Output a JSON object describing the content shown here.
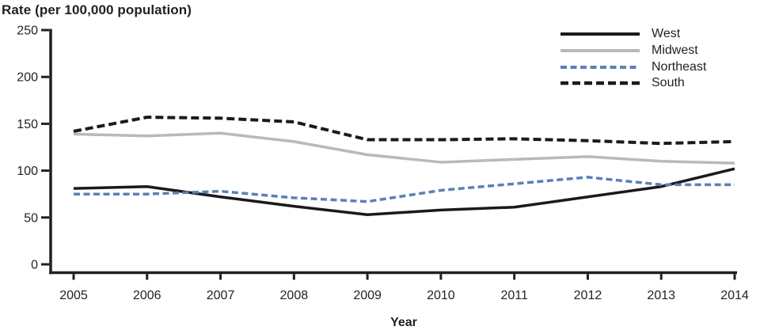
{
  "chart_data": {
    "type": "line",
    "y_axis_title": "Rate (per 100,000 population)",
    "x_axis_title": "Year",
    "x": [
      2005,
      2006,
      2007,
      2008,
      2009,
      2010,
      2011,
      2012,
      2013,
      2014
    ],
    "ylim": [
      0,
      250
    ],
    "yticks": [
      0,
      50,
      100,
      150,
      200,
      250
    ],
    "grid": false,
    "legend_position": "top-right",
    "axis_color": "#231f20",
    "text_color": "#231f20",
    "series": [
      {
        "name": "West",
        "color": "#1a1a1a",
        "dash": null,
        "width": 3.5,
        "values": [
          81,
          83,
          72,
          62,
          53,
          58,
          61,
          72,
          83,
          102
        ]
      },
      {
        "name": "Midwest",
        "color": "#b9b9b9",
        "dash": null,
        "width": 3.5,
        "values": [
          139,
          137,
          140,
          131,
          117,
          109,
          112,
          115,
          110,
          108
        ]
      },
      {
        "name": "Northeast",
        "color": "#5b7fb7",
        "dash": "8 4.5",
        "width": 3.5,
        "values": [
          75,
          75,
          78,
          71,
          67,
          79,
          86,
          93,
          85,
          85
        ]
      },
      {
        "name": "South",
        "color": "#1a1a1a",
        "dash": "10 5",
        "width": 4,
        "values": [
          142,
          157,
          156,
          152,
          133,
          133,
          134,
          132,
          129,
          131
        ]
      }
    ]
  }
}
